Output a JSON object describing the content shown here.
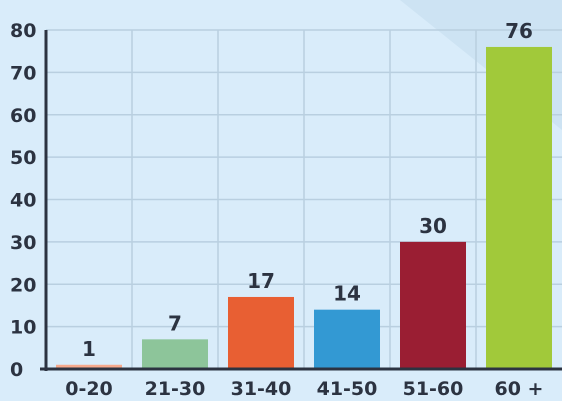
{
  "chart_data": {
    "type": "bar",
    "categories": [
      "0-20",
      "21-30",
      "31-40",
      "41-50",
      "51-60",
      "60 +"
    ],
    "values": [
      1,
      7,
      17,
      14,
      30,
      76
    ],
    "data_labels": [
      "1",
      "7",
      "17",
      "14",
      "30",
      "76"
    ],
    "colors": [
      "#f6a98c",
      "#8dc59a",
      "#e85f33",
      "#3399d3",
      "#9a1e33",
      "#a1c93a"
    ],
    "ylim": [
      0,
      80
    ],
    "yticks": [
      "0",
      "10",
      "20",
      "30",
      "40",
      "50",
      "60",
      "70",
      "80"
    ],
    "grid": true,
    "title": "",
    "xlabel": "",
    "ylabel": ""
  }
}
